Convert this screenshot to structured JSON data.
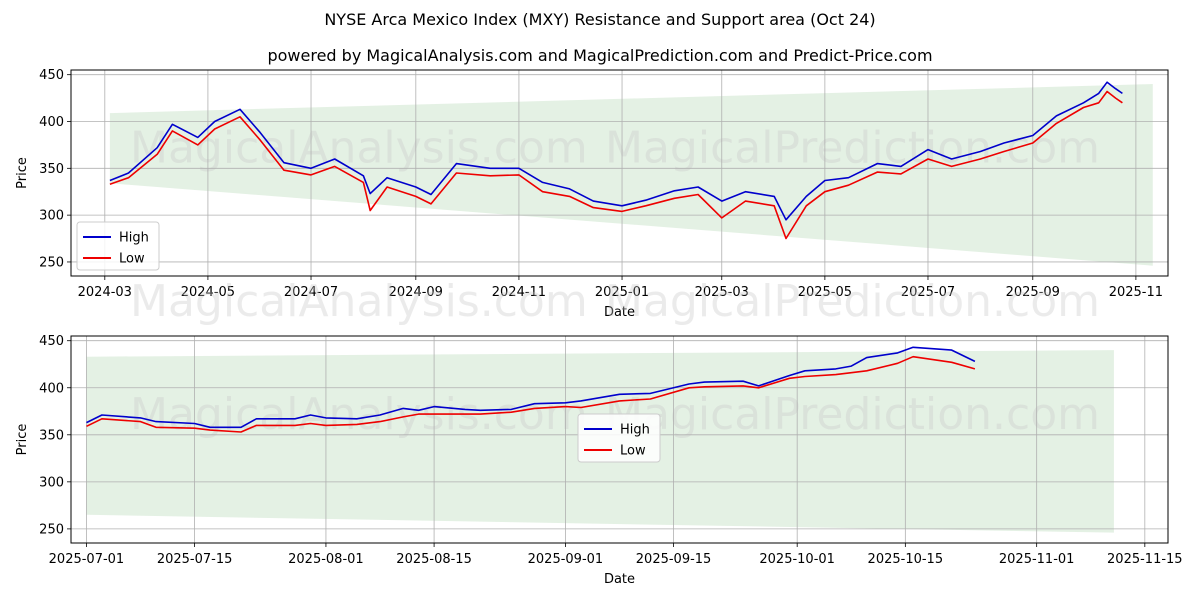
{
  "title": "NYSE Arca Mexico Index (MXY) Resistance and Support area (Oct 24)",
  "subtitle": "powered by MagicalAnalysis.com and MagicalPrediction.com and Predict-Price.com",
  "watermark": {
    "left": "MagicalAnalysis.com",
    "right": "MagicalPrediction.com"
  },
  "colors": {
    "high": "#0000cc",
    "low": "#ee0000",
    "band": "#d8ebd8",
    "grid": "#b0b0b0"
  },
  "chart_data": [
    {
      "type": "line",
      "xlabel": "Date",
      "ylabel": "Price",
      "grid": true,
      "legend_position": "lower-left",
      "xlim": [
        "2024-02-10",
        "2025-11-20"
      ],
      "ylim": [
        235,
        455
      ],
      "x_ticks": [
        "2024-03",
        "2024-05",
        "2024-07",
        "2024-09",
        "2024-11",
        "2025-01",
        "2025-03",
        "2025-05",
        "2025-07",
        "2025-09",
        "2025-11"
      ],
      "x_tick_dates": [
        "2024-03-01",
        "2024-05-01",
        "2024-07-01",
        "2024-09-01",
        "2024-11-01",
        "2025-01-01",
        "2025-03-01",
        "2025-05-01",
        "2025-07-01",
        "2025-09-01",
        "2025-11-01"
      ],
      "y_ticks": [
        250,
        300,
        350,
        400,
        450
      ],
      "band": {
        "x": [
          "2024-03-04",
          "2025-11-11"
        ],
        "upper": [
          409,
          440
        ],
        "lower": [
          334,
          246
        ]
      },
      "series": [
        {
          "name": "High",
          "x": [
            "2024-03-04",
            "2024-03-15",
            "2024-04-01",
            "2024-04-10",
            "2024-04-25",
            "2024-05-05",
            "2024-05-20",
            "2024-06-01",
            "2024-06-15",
            "2024-07-01",
            "2024-07-15",
            "2024-08-01",
            "2024-08-05",
            "2024-08-15",
            "2024-09-01",
            "2024-09-10",
            "2024-09-25",
            "2024-10-15",
            "2024-11-01",
            "2024-11-15",
            "2024-12-01",
            "2024-12-15",
            "2025-01-01",
            "2025-01-15",
            "2025-02-01",
            "2025-02-15",
            "2025-03-01",
            "2025-03-15",
            "2025-04-01",
            "2025-04-08",
            "2025-04-20",
            "2025-05-01",
            "2025-05-15",
            "2025-06-01",
            "2025-06-15",
            "2025-07-01",
            "2025-07-15",
            "2025-08-01",
            "2025-08-15",
            "2025-09-01",
            "2025-09-15",
            "2025-10-01",
            "2025-10-10",
            "2025-10-15",
            "2025-10-20",
            "2025-10-24"
          ],
          "values": [
            337,
            345,
            372,
            397,
            383,
            400,
            413,
            388,
            356,
            350,
            360,
            342,
            323,
            340,
            330,
            322,
            355,
            350,
            350,
            335,
            328,
            315,
            310,
            316,
            326,
            330,
            315,
            325,
            320,
            295,
            320,
            337,
            340,
            355,
            352,
            370,
            360,
            368,
            377,
            385,
            406,
            420,
            430,
            442,
            435,
            430
          ]
        },
        {
          "name": "Low",
          "x": [
            "2024-03-04",
            "2024-03-15",
            "2024-04-01",
            "2024-04-10",
            "2024-04-25",
            "2024-05-05",
            "2024-05-20",
            "2024-06-01",
            "2024-06-15",
            "2024-07-01",
            "2024-07-15",
            "2024-08-01",
            "2024-08-05",
            "2024-08-15",
            "2024-09-01",
            "2024-09-10",
            "2024-09-25",
            "2024-10-15",
            "2024-11-01",
            "2024-11-15",
            "2024-12-01",
            "2024-12-15",
            "2025-01-01",
            "2025-01-15",
            "2025-02-01",
            "2025-02-15",
            "2025-03-01",
            "2025-03-15",
            "2025-04-01",
            "2025-04-08",
            "2025-04-20",
            "2025-05-01",
            "2025-05-15",
            "2025-06-01",
            "2025-06-15",
            "2025-07-01",
            "2025-07-15",
            "2025-08-01",
            "2025-08-15",
            "2025-09-01",
            "2025-09-15",
            "2025-10-01",
            "2025-10-10",
            "2025-10-15",
            "2025-10-20",
            "2025-10-24"
          ],
          "values": [
            333,
            340,
            365,
            390,
            375,
            392,
            405,
            380,
            348,
            343,
            352,
            335,
            305,
            330,
            320,
            312,
            345,
            342,
            343,
            325,
            320,
            308,
            304,
            310,
            318,
            322,
            297,
            315,
            310,
            275,
            310,
            325,
            332,
            346,
            344,
            360,
            352,
            360,
            368,
            377,
            398,
            415,
            420,
            432,
            425,
            420
          ]
        }
      ]
    },
    {
      "type": "line",
      "xlabel": "Date",
      "ylabel": "Price",
      "grid": true,
      "legend_position": "center",
      "xlim": [
        "2025-06-29",
        "2025-11-18"
      ],
      "ylim": [
        235,
        455
      ],
      "x_ticks": [
        "2025-07-01",
        "2025-07-15",
        "2025-08-01",
        "2025-08-15",
        "2025-09-01",
        "2025-09-15",
        "2025-10-01",
        "2025-10-15",
        "2025-11-01",
        "2025-11-15"
      ],
      "y_ticks": [
        250,
        300,
        350,
        400,
        450
      ],
      "band": {
        "x": [
          "2025-07-01",
          "2025-11-11"
        ],
        "upper": [
          433,
          440
        ],
        "lower": [
          265,
          246
        ]
      },
      "series": [
        {
          "name": "High",
          "x": [
            "2025-07-01",
            "2025-07-03",
            "2025-07-08",
            "2025-07-10",
            "2025-07-15",
            "2025-07-17",
            "2025-07-21",
            "2025-07-23",
            "2025-07-28",
            "2025-07-30",
            "2025-08-01",
            "2025-08-05",
            "2025-08-08",
            "2025-08-11",
            "2025-08-13",
            "2025-08-15",
            "2025-08-19",
            "2025-08-21",
            "2025-08-25",
            "2025-08-28",
            "2025-09-01",
            "2025-09-03",
            "2025-09-08",
            "2025-09-12",
            "2025-09-17",
            "2025-09-19",
            "2025-09-24",
            "2025-09-26",
            "2025-09-30",
            "2025-10-02",
            "2025-10-06",
            "2025-10-08",
            "2025-10-10",
            "2025-10-14",
            "2025-10-16",
            "2025-10-21",
            "2025-10-24"
          ],
          "values": [
            363,
            371,
            368,
            364,
            362,
            358,
            358,
            367,
            367,
            371,
            368,
            367,
            371,
            378,
            376,
            380,
            377,
            376,
            377,
            383,
            384,
            386,
            393,
            394,
            404,
            406,
            407,
            402,
            413,
            418,
            420,
            423,
            432,
            437,
            443,
            440,
            428
          ]
        },
        {
          "name": "Low",
          "x": [
            "2025-07-01",
            "2025-07-03",
            "2025-07-08",
            "2025-07-10",
            "2025-07-15",
            "2025-07-17",
            "2025-07-21",
            "2025-07-23",
            "2025-07-28",
            "2025-07-30",
            "2025-08-01",
            "2025-08-05",
            "2025-08-08",
            "2025-08-11",
            "2025-08-13",
            "2025-08-15",
            "2025-08-19",
            "2025-08-21",
            "2025-08-25",
            "2025-08-28",
            "2025-09-01",
            "2025-09-03",
            "2025-09-08",
            "2025-09-12",
            "2025-09-17",
            "2025-09-19",
            "2025-09-24",
            "2025-09-26",
            "2025-09-30",
            "2025-10-02",
            "2025-10-06",
            "2025-10-08",
            "2025-10-10",
            "2025-10-14",
            "2025-10-16",
            "2025-10-21",
            "2025-10-24"
          ],
          "values": [
            359,
            367,
            364,
            358,
            357,
            355,
            353,
            360,
            360,
            362,
            360,
            361,
            364,
            369,
            372,
            372,
            372,
            372,
            374,
            378,
            380,
            379,
            386,
            388,
            400,
            401,
            402,
            400,
            410,
            412,
            414,
            416,
            418,
            426,
            433,
            427,
            420
          ]
        }
      ]
    }
  ]
}
